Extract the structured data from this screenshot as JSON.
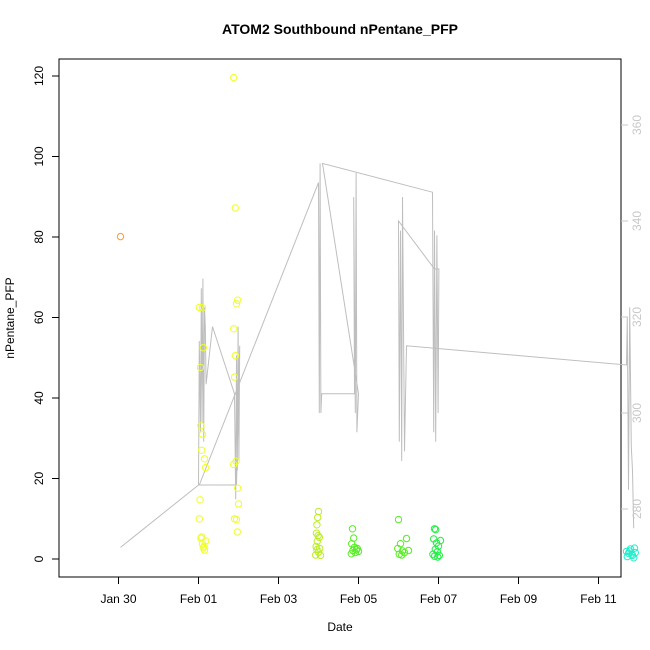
{
  "chart_data": {
    "type": "scatter",
    "title": "ATOM2 Southbound nPentane_PFP",
    "xlabel": "Date",
    "ylabel": "nPentane_PFP",
    "ylim": [
      0,
      120
    ],
    "y_ticks": [
      0,
      20,
      40,
      60,
      80,
      100,
      120
    ],
    "x_ticks": [
      "Jan 30",
      "Feb 01",
      "Feb 03",
      "Feb 05",
      "Feb 07",
      "Feb 09",
      "Feb 11"
    ],
    "y2_ticks": [
      280,
      300,
      320,
      340,
      360
    ],
    "grid": false,
    "colors": {
      "orange": "#ff9933",
      "yellow": "#eeff22",
      "yellowgreen": "#bbee22",
      "green": "#55ee22",
      "brightgreen": "#22ee44",
      "cyan": "#22eecc",
      "alt_line": "#bebebe",
      "right_axis": "#c8c8c8"
    },
    "series": [
      {
        "color": "orange",
        "points": [
          [
            -1.95,
            80.1
          ]
        ]
      },
      {
        "color": "yellow",
        "points": [
          [
            0.02,
            62.5
          ],
          [
            0.05,
            47.6
          ],
          [
            0.06,
            33.1
          ],
          [
            0.08,
            27.0
          ],
          [
            0.1,
            31.0
          ],
          [
            0.04,
            14.7
          ],
          [
            0.02,
            10.0
          ],
          [
            0.06,
            5.2
          ],
          [
            0.1,
            3.8
          ],
          [
            0.12,
            2.8
          ],
          [
            0.15,
            2.2
          ],
          [
            0.18,
            4.5
          ],
          [
            0.12,
            52.5
          ],
          [
            0.15,
            24.9
          ],
          [
            0.18,
            22.7
          ],
          [
            0.1,
            62.4
          ],
          [
            0.08,
            5.5
          ],
          [
            0.14,
            3.2
          ],
          [
            0.88,
            119.6
          ],
          [
            0.92,
            87.2
          ],
          [
            0.98,
            64.3
          ],
          [
            0.95,
            63.4
          ],
          [
            0.88,
            57.2
          ],
          [
            0.92,
            50.5
          ],
          [
            0.9,
            45.2
          ],
          [
            0.88,
            23.5
          ],
          [
            0.94,
            24.3
          ],
          [
            0.98,
            17.6
          ],
          [
            1.0,
            13.7
          ],
          [
            0.9,
            10.0
          ],
          [
            0.95,
            9.8
          ],
          [
            0.97,
            6.7
          ]
        ]
      },
      {
        "color": "yellowgreen",
        "points": [
          [
            3.0,
            11.8
          ],
          [
            2.98,
            10.3
          ],
          [
            2.96,
            8.5
          ],
          [
            2.95,
            6.4
          ],
          [
            3.02,
            5.4
          ],
          [
            2.97,
            4.4
          ],
          [
            2.94,
            3.1
          ],
          [
            2.96,
            2.3
          ],
          [
            3.0,
            1.7
          ],
          [
            2.93,
            1.0
          ],
          [
            3.05,
            0.9
          ],
          [
            2.99,
            5.8
          ],
          [
            3.03,
            2.6
          ]
        ]
      },
      {
        "color": "green",
        "points": [
          [
            3.85,
            7.5
          ],
          [
            3.88,
            5.2
          ],
          [
            3.83,
            3.8
          ],
          [
            3.9,
            2.9
          ],
          [
            3.86,
            2.1
          ],
          [
            3.92,
            1.6
          ],
          [
            3.95,
            2.3
          ],
          [
            4.0,
            1.9
          ],
          [
            3.82,
            1.3
          ],
          [
            3.97,
            2.6
          ],
          [
            5.0,
            9.8
          ],
          [
            5.05,
            3.8
          ],
          [
            4.98,
            2.6
          ],
          [
            5.1,
            2.0
          ],
          [
            5.15,
            1.6
          ],
          [
            5.2,
            5.1
          ],
          [
            5.02,
            1.2
          ],
          [
            5.08,
            1.0
          ],
          [
            5.25,
            2.1
          ]
        ]
      },
      {
        "color": "brightgreen",
        "points": [
          [
            5.9,
            7.5
          ],
          [
            5.93,
            7.3
          ],
          [
            5.88,
            5.0
          ],
          [
            5.95,
            4.0
          ],
          [
            6.0,
            3.2
          ],
          [
            5.92,
            2.4
          ],
          [
            5.97,
            1.8
          ],
          [
            5.86,
            1.2
          ],
          [
            6.02,
            0.9
          ],
          [
            5.9,
            0.7
          ],
          [
            6.05,
            4.6
          ],
          [
            5.98,
            0.5
          ]
        ]
      },
      {
        "color": "cyan",
        "points": [
          [
            10.7,
            1.9
          ],
          [
            10.75,
            1.4
          ],
          [
            10.8,
            2.5
          ],
          [
            10.85,
            0.9
          ],
          [
            10.9,
            2.7
          ],
          [
            10.72,
            0.6
          ],
          [
            10.78,
            2.0
          ],
          [
            10.83,
            1.2
          ],
          [
            10.88,
            0.3
          ],
          [
            10.92,
            1.6
          ]
        ]
      }
    ],
    "altitude_line": {
      "color": "alt_line",
      "axis": "right",
      "points": [
        [
          -1.95,
          272
        ],
        [
          0.0,
          285
        ],
        [
          0.02,
          315
        ],
        [
          0.05,
          296
        ],
        [
          0.07,
          326
        ],
        [
          0.09,
          298
        ],
        [
          0.11,
          328
        ],
        [
          0.13,
          294
        ],
        [
          0.15,
          322
        ],
        [
          0.17,
          318
        ],
        [
          0.19,
          306
        ],
        [
          0.35,
          318
        ],
        [
          0.9,
          304
        ],
        [
          0.93,
          282
        ],
        [
          0.95,
          312
        ],
        [
          0.97,
          288
        ],
        [
          0.99,
          318
        ],
        [
          1.01,
          290
        ],
        [
          1.03,
          314
        ],
        [
          0.95,
          285
        ],
        [
          0.02,
          285
        ],
        [
          3.0,
          348
        ],
        [
          3.02,
          300
        ],
        [
          3.04,
          352
        ],
        [
          3.06,
          300
        ],
        [
          3.08,
          304
        ],
        [
          3.9,
          304
        ],
        [
          3.88,
          345
        ],
        [
          3.92,
          300
        ],
        [
          3.94,
          350
        ],
        [
          3.96,
          296
        ],
        [
          4.0,
          304
        ],
        [
          3.1,
          352
        ],
        [
          5.85,
          346
        ],
        [
          5.88,
          296
        ],
        [
          5.9,
          338
        ],
        [
          5.93,
          294
        ],
        [
          5.96,
          337
        ],
        [
          5.99,
          300
        ],
        [
          6.01,
          330
        ],
        [
          5.9,
          330
        ],
        [
          5.0,
          340
        ],
        [
          5.02,
          294
        ],
        [
          5.05,
          338
        ],
        [
          5.08,
          290
        ],
        [
          5.1,
          345
        ],
        [
          5.15,
          292
        ],
        [
          5.2,
          314
        ],
        [
          10.7,
          310
        ],
        [
          10.72,
          320
        ],
        [
          10.75,
          284
        ],
        [
          10.78,
          322
        ],
        [
          10.82,
          293
        ],
        [
          10.85,
          288
        ],
        [
          10.88,
          276
        ]
      ]
    }
  }
}
